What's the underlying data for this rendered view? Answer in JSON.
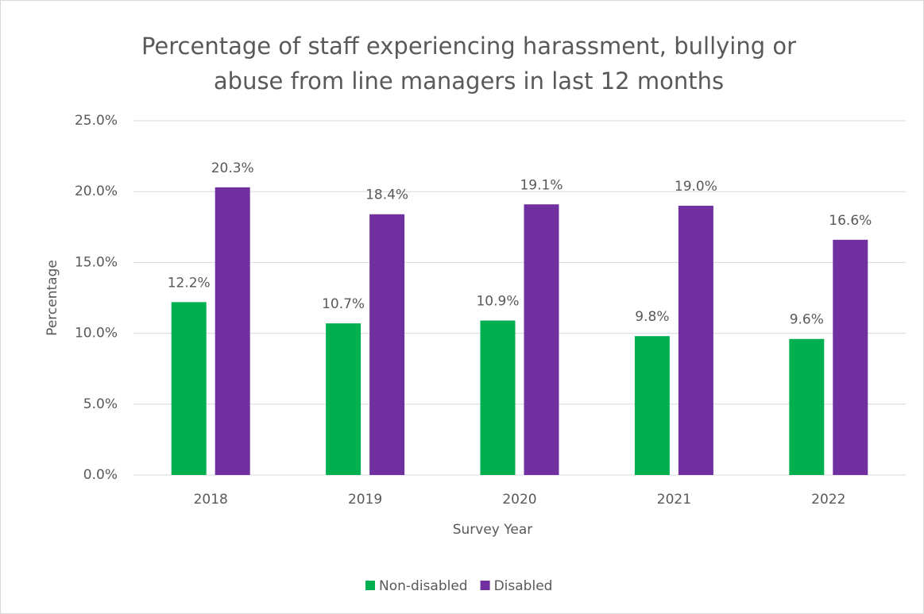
{
  "chart_data": {
    "type": "bar",
    "title": "Percentage of staff experiencing harassment, bullying or abuse from line managers in last 12 months",
    "x_label": "Survey Year",
    "y_label": "Percentage",
    "categories": [
      "2018",
      "2019",
      "2020",
      "2021",
      "2022"
    ],
    "series": [
      {
        "name": "Non-disabled",
        "color": "#00b050",
        "values": [
          12.2,
          10.7,
          10.9,
          9.8,
          9.6
        ],
        "value_labels": [
          "12.2%",
          "10.7%",
          "10.9%",
          "9.8%",
          "9.6%"
        ]
      },
      {
        "name": "Disabled",
        "color": "#7030a0",
        "values": [
          20.3,
          18.4,
          19.1,
          19.0,
          16.6
        ],
        "value_labels": [
          "20.3%",
          "18.4%",
          "19.1%",
          "19.0%",
          "16.6%"
        ]
      }
    ],
    "ylim": [
      0,
      25
    ],
    "yticks": [
      {
        "value": 0,
        "label": "0.0%"
      },
      {
        "value": 5,
        "label": "5.0%"
      },
      {
        "value": 10,
        "label": "10.0%"
      },
      {
        "value": 15,
        "label": "15.0%"
      },
      {
        "value": 20,
        "label": "20.0%"
      },
      {
        "value": 25,
        "label": "25.0%"
      }
    ],
    "grid": true,
    "legend": "bottom"
  }
}
